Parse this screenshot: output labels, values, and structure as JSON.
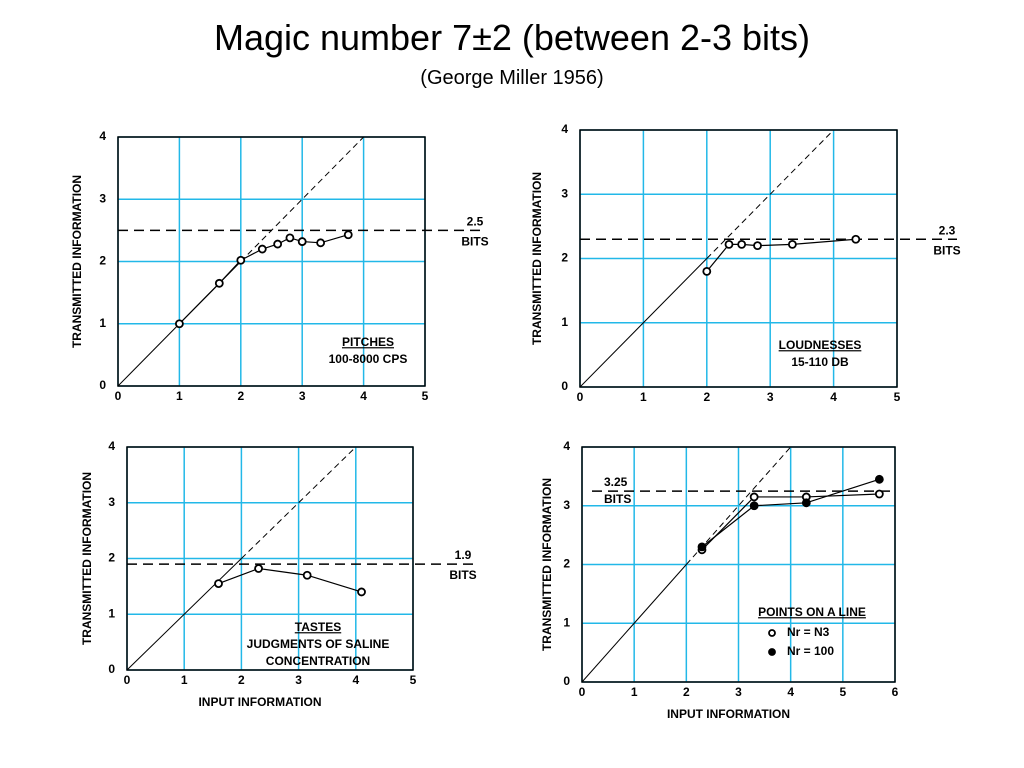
{
  "header": {
    "title": "Magic number 7±2 (between 2-3 bits)",
    "subtitle": "(George Miller 1956)"
  },
  "chart_data": [
    {
      "type": "line",
      "ylabel": "TRANSMITTED INFORMATION",
      "xlim": [
        0,
        5
      ],
      "ylim": [
        0,
        4
      ],
      "xticks": [
        0,
        1,
        2,
        3,
        4,
        5
      ],
      "yticks": [
        0,
        1,
        2,
        3,
        4
      ],
      "grid": true,
      "reference": {
        "value": 2.5,
        "label": "BITS"
      },
      "annotations": [
        "PITCHES",
        "100-8000 CPS"
      ],
      "series": [
        {
          "color": "#000000",
          "marker": "open",
          "x": [
            1,
            1.65,
            2,
            2.35,
            2.6,
            2.8,
            3,
            3.3,
            3.75
          ],
          "values": [
            1,
            1.65,
            2.02,
            2.2,
            2.28,
            2.38,
            2.32,
            2.3,
            2.43
          ]
        }
      ]
    },
    {
      "type": "line",
      "ylabel": "TRANSMITTED INFORMATION",
      "xlim": [
        0,
        5
      ],
      "ylim": [
        0,
        4
      ],
      "xticks": [
        0,
        1,
        2,
        3,
        4,
        5
      ],
      "yticks": [
        0,
        1,
        2,
        3,
        4
      ],
      "grid": true,
      "reference": {
        "value": 2.3,
        "label": "BITS"
      },
      "annotations": [
        "LOUDNESSES",
        "15-110 DB"
      ],
      "series": [
        {
          "color": "#000000",
          "marker": "open",
          "x": [
            2,
            2.35,
            2.55,
            2.8,
            3.35,
            4.35
          ],
          "values": [
            1.8,
            2.22,
            2.22,
            2.2,
            2.22,
            2.3
          ]
        }
      ]
    },
    {
      "type": "line",
      "ylabel": "TRANSMITTED INFORMATION",
      "xlabel": "INPUT INFORMATION",
      "xlim": [
        0,
        5
      ],
      "ylim": [
        0,
        4
      ],
      "xticks": [
        0,
        1,
        2,
        3,
        4,
        5
      ],
      "yticks": [
        0,
        1,
        2,
        3,
        4
      ],
      "grid": true,
      "reference": {
        "value": 1.9,
        "label": "BITS"
      },
      "annotations": [
        "TASTES",
        "JUDGMENTS OF SALINE",
        "CONCENTRATION"
      ],
      "series": [
        {
          "color": "#000000",
          "marker": "open",
          "x": [
            1.6,
            2.3,
            3.15,
            4.1
          ],
          "values": [
            1.55,
            1.82,
            1.7,
            1.4
          ]
        }
      ]
    },
    {
      "type": "line",
      "ylabel": "TRANSMITTED INFORMATION",
      "xlabel": "INPUT INFORMATION",
      "xlim": [
        0,
        6
      ],
      "ylim": [
        0,
        4
      ],
      "xticks": [
        0,
        1,
        2,
        3,
        4,
        5,
        6
      ],
      "yticks": [
        0,
        1,
        2,
        3,
        4
      ],
      "grid": true,
      "reference": {
        "value": 3.25,
        "label": "BITS"
      },
      "annotations": [
        "POINTS ON A LINE"
      ],
      "series": [
        {
          "name": "Nr = N3",
          "color": "#000000",
          "marker": "open",
          "x": [
            2.3,
            3.3,
            4.3,
            5.7
          ],
          "values": [
            2.25,
            3.15,
            3.15,
            3.2
          ]
        },
        {
          "name": "Nr = 100",
          "color": "#000000",
          "marker": "filled",
          "x": [
            2.3,
            3.3,
            4.3,
            5.7
          ],
          "values": [
            2.3,
            3.0,
            3.05,
            3.45
          ]
        }
      ]
    }
  ]
}
